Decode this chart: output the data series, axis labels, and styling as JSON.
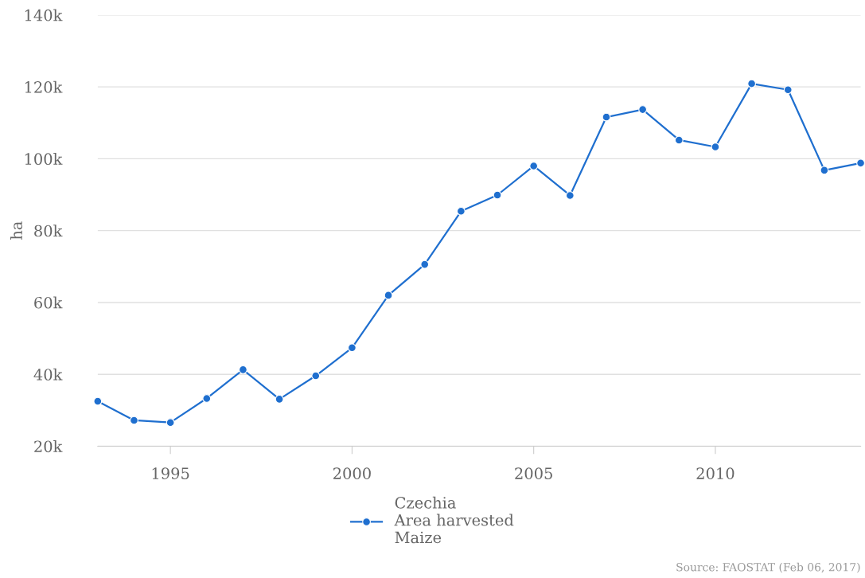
{
  "chart_data": {
    "type": "line",
    "ylabel": "ha",
    "x": [
      1993,
      1994,
      1995,
      1996,
      1997,
      1998,
      1999,
      2000,
      2001,
      2002,
      2003,
      2004,
      2005,
      2006,
      2007,
      2008,
      2009,
      2010,
      2011,
      2012,
      2013,
      2014
    ],
    "series": [
      {
        "name": "Czechia\nArea harvested\nMaize",
        "color": "#1f6fcf",
        "values": [
          32500,
          27200,
          26600,
          33300,
          41300,
          33100,
          39600,
          47400,
          62000,
          70600,
          85400,
          89900,
          98000,
          89800,
          111600,
          113700,
          105200,
          103300,
          120900,
          119200,
          96800,
          98800
        ]
      }
    ],
    "xlim": [
      1993,
      2014
    ],
    "xticks": [
      1995,
      2000,
      2005,
      2010
    ],
    "ylim": [
      20000,
      140000
    ],
    "yticks": [
      {
        "value": 20000,
        "label": "20k"
      },
      {
        "value": 40000,
        "label": "40k"
      },
      {
        "value": 60000,
        "label": "60k"
      },
      {
        "value": 80000,
        "label": "80k"
      },
      {
        "value": 100000,
        "label": "100k"
      },
      {
        "value": 120000,
        "label": "120k"
      },
      {
        "value": 140000,
        "label": "140k"
      }
    ],
    "grid": "y",
    "legend": "bottom",
    "marker": "circle",
    "line_style": "solid",
    "annotations": [
      "Source: FAOSTAT (Feb 06, 2017)"
    ]
  }
}
